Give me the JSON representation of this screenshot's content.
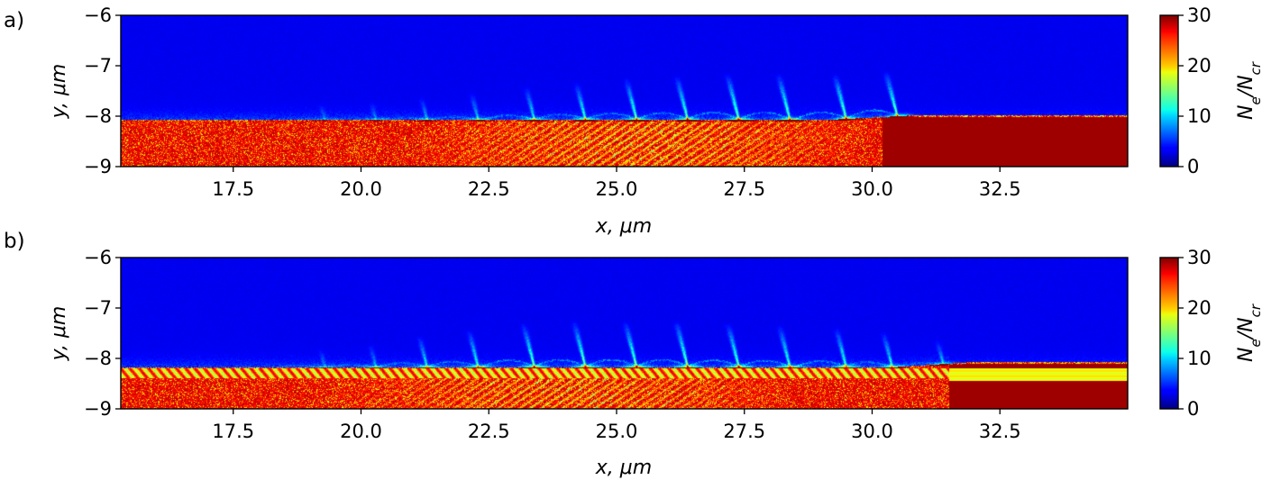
{
  "chart_data": [
    {
      "type": "heatmap",
      "panel_label": "a)",
      "title": "",
      "xlabel": "x, μm",
      "ylabel": "y, μm",
      "xlim": [
        15.3,
        35.0
      ],
      "ylim": [
        -9,
        -6
      ],
      "xticks": [
        17.5,
        20.0,
        22.5,
        25.0,
        27.5,
        30.0,
        32.5
      ],
      "xtick_labels": [
        "17.5",
        "20.0",
        "22.5",
        "25.0",
        "27.5",
        "30.0",
        "32.5"
      ],
      "yticks": [
        -6,
        -7,
        -8,
        -9
      ],
      "ytick_labels": [
        "−6",
        "−7",
        "−8",
        "−9"
      ],
      "colorbar": {
        "label_main": "N",
        "label_sub1": "e",
        "label_mid": "/N",
        "label_sub2": "cr",
        "range": [
          0,
          30
        ],
        "ticks": [
          0,
          10,
          20,
          30
        ],
        "tick_labels": [
          "0",
          "10",
          "20",
          "30"
        ],
        "colormap": "jet"
      },
      "surface_y": -8.1,
      "surface_y_right": -8.02,
      "jet_x": [
        19.3,
        20.3,
        21.3,
        22.3,
        23.4,
        24.4,
        25.4,
        26.4,
        27.4,
        28.4,
        29.5,
        30.5
      ],
      "jet_strength": [
        0.25,
        0.3,
        0.4,
        0.5,
        0.65,
        0.75,
        0.85,
        0.9,
        0.95,
        0.95,
        0.95,
        0.95
      ],
      "ripple_region": [
        21.0,
        30.0
      ],
      "uniform_from_x": 30.2
    },
    {
      "type": "heatmap",
      "panel_label": "b)",
      "title": "",
      "xlabel": "x, μm",
      "ylabel": "y, μm",
      "xlim": [
        15.3,
        35.0
      ],
      "ylim": [
        -9,
        -6
      ],
      "xticks": [
        17.5,
        20.0,
        22.5,
        25.0,
        27.5,
        30.0,
        32.5
      ],
      "xtick_labels": [
        "17.5",
        "20.0",
        "22.5",
        "25.0",
        "27.5",
        "30.0",
        "32.5"
      ],
      "yticks": [
        -6,
        -7,
        -8,
        -9
      ],
      "ytick_labels": [
        "−6",
        "−7",
        "−8",
        "−9"
      ],
      "colorbar": {
        "label_main": "N",
        "label_sub1": "e",
        "label_mid": "/N",
        "label_sub2": "cr",
        "range": [
          0,
          30
        ],
        "ticks": [
          0,
          10,
          20,
          30
        ],
        "tick_labels": [
          "0",
          "10",
          "20",
          "30"
        ],
        "colormap": "jet"
      },
      "surface_y": -8.2,
      "surface_y_right": -8.1,
      "jet_x": [
        19.3,
        20.3,
        21.3,
        22.3,
        23.4,
        24.4,
        25.4,
        26.4,
        27.4,
        28.4,
        29.5,
        30.4,
        31.4
      ],
      "jet_strength": [
        0.3,
        0.4,
        0.6,
        0.75,
        0.9,
        0.95,
        0.95,
        0.95,
        0.9,
        0.85,
        0.8,
        0.7,
        0.45
      ],
      "layer_band": [
        -8.2,
        -8.4
      ],
      "ripple_region": [
        19.5,
        28.5
      ],
      "uniform_from_x": 31.5
    }
  ]
}
